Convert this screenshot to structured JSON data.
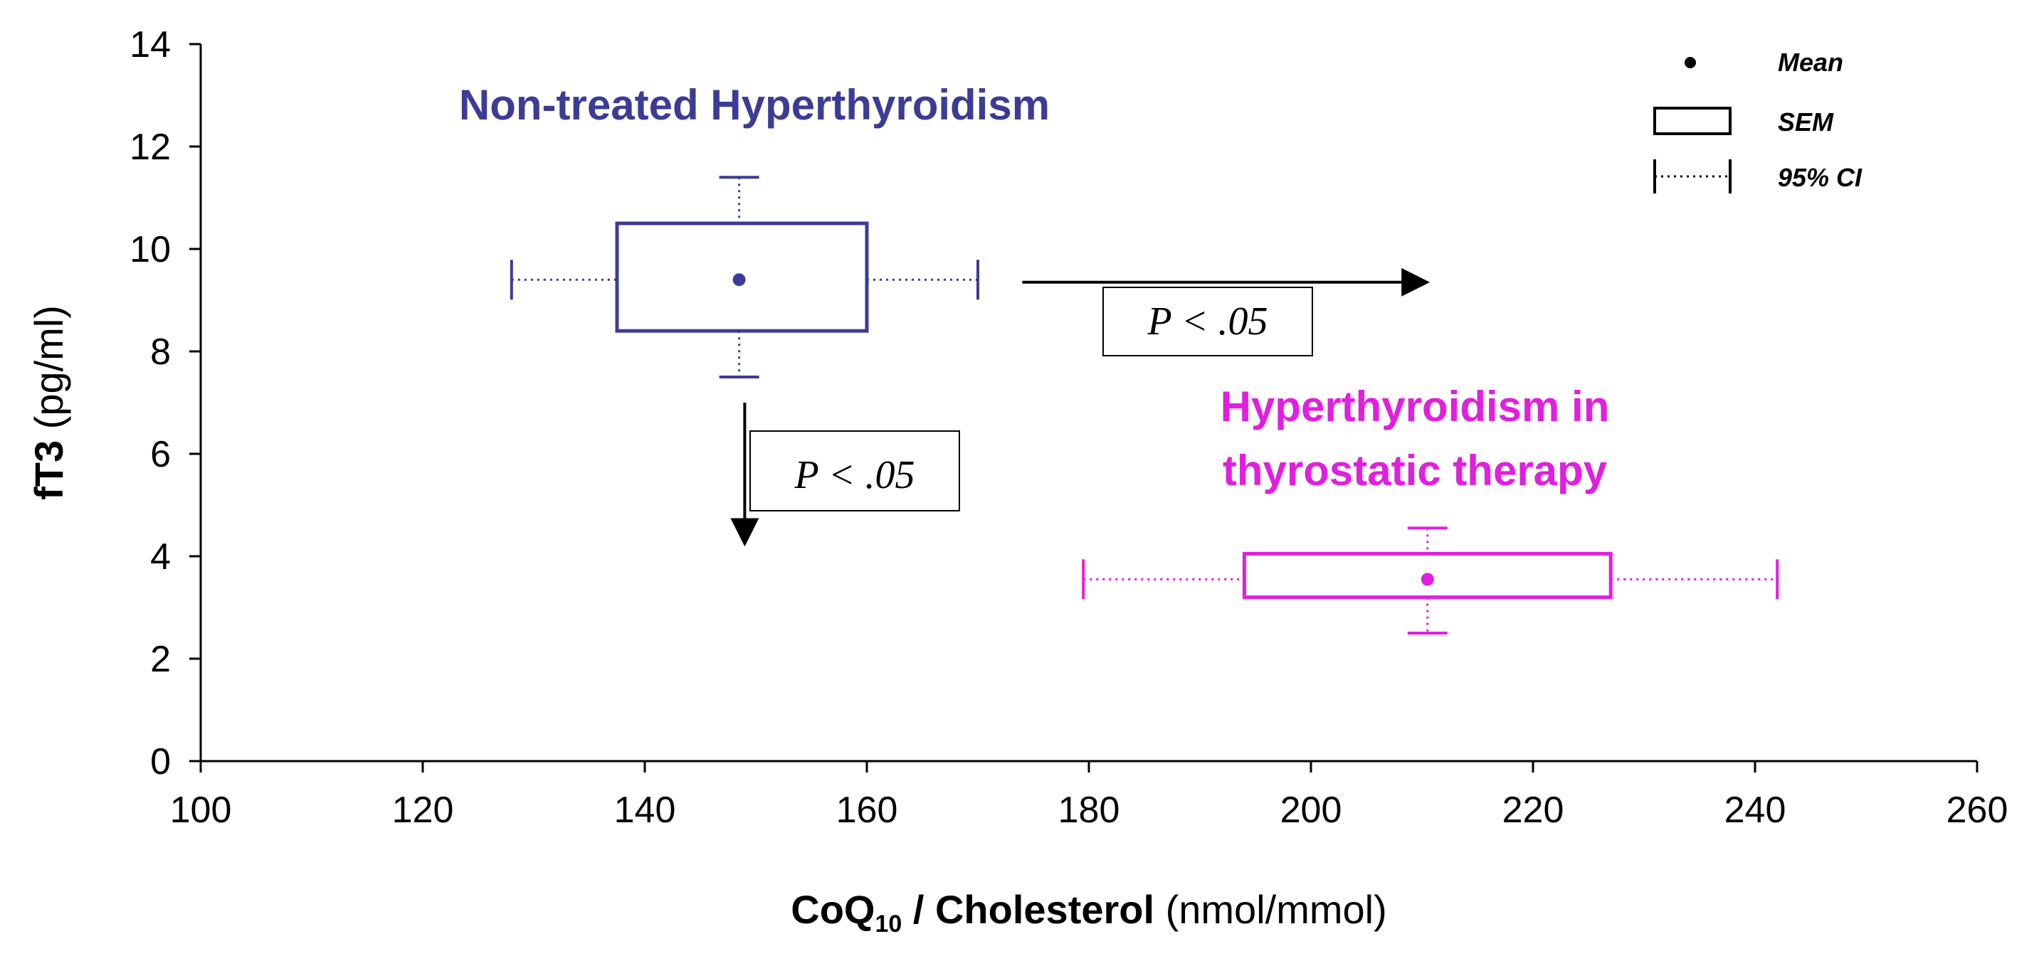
{
  "chart_data": {
    "type": "box",
    "title": "",
    "xlabel": {
      "main": "CoQ",
      "subscript": "10",
      "rest": " / Cholesterol",
      "unit": " (nmol/mmol)"
    },
    "ylabel": {
      "main": "fT3",
      "unit": " (pg/ml)"
    },
    "xlim": [
      100,
      260
    ],
    "ylim": [
      0,
      14
    ],
    "xticks": [
      "100",
      "120",
      "140",
      "160",
      "180",
      "200",
      "220",
      "240",
      "260"
    ],
    "yticks": [
      "0",
      "2",
      "4",
      "6",
      "8",
      "10",
      "12",
      "14"
    ],
    "grid": false,
    "legend": {
      "position": "top-right",
      "entries": [
        {
          "symbol": "dot",
          "label": "Mean"
        },
        {
          "symbol": "box",
          "label": "SEM"
        },
        {
          "symbol": "whisker",
          "label": "95% CI"
        }
      ]
    },
    "series": [
      {
        "name": "Non-treated Hyperthyroidism",
        "color": "#3c3c96",
        "x_mean": 148.5,
        "x_sem": [
          137.5,
          160
        ],
        "x_ci": [
          128,
          170
        ],
        "y_mean": 9.4,
        "y_sem": [
          8.4,
          10.5
        ],
        "y_ci": [
          7.5,
          11.4
        ]
      },
      {
        "name": "Hyperthyroidism in thyrostatic therapy",
        "label_lines": [
          "Hyperthyroidism in",
          "thyrostatic therapy"
        ],
        "color": "#e21ee0",
        "x_mean": 210.5,
        "x_sem": [
          194,
          227
        ],
        "x_ci": [
          179.5,
          242
        ],
        "y_mean": 3.55,
        "y_sem": [
          3.2,
          4.05
        ],
        "y_ci": [
          2.5,
          4.55
        ]
      }
    ],
    "annotations": [
      {
        "text": "P < .05",
        "direction": "right",
        "from_x": 174,
        "to_x": 207,
        "y": 9.35
      },
      {
        "text": "P < .05",
        "direction": "down",
        "x": 149,
        "from_y": 7.0,
        "to_y": 3.8
      }
    ]
  }
}
